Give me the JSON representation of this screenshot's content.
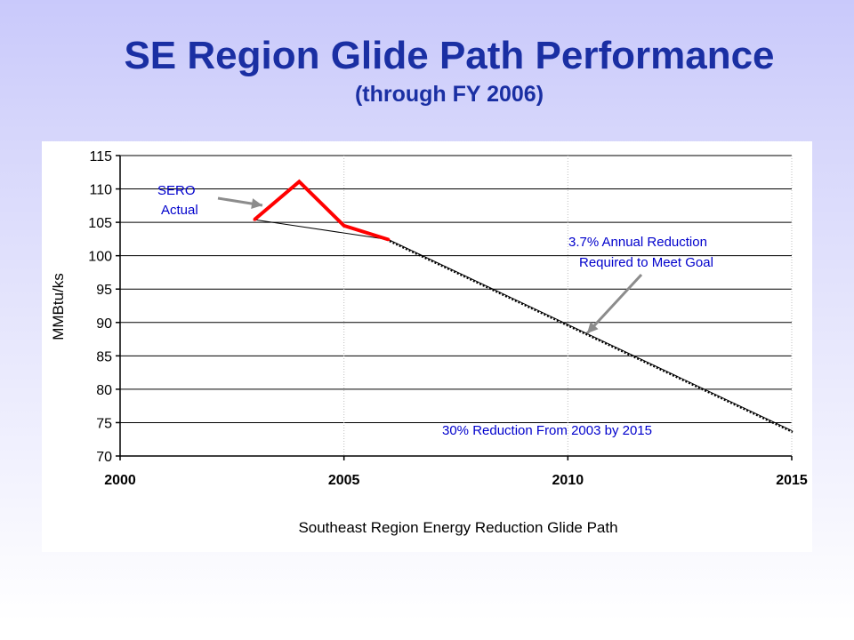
{
  "slide": {
    "title": "SE Region Glide Path Performance",
    "subtitle": "(through FY 2006)"
  },
  "chart_data": {
    "type": "line",
    "xlabel": "Southeast Region Energy Reduction Glide Path",
    "ylabel": "MMBtu/ks",
    "xlim": [
      2000,
      2015
    ],
    "ylim": [
      70,
      115
    ],
    "x_ticks": [
      "2000",
      "2005",
      "2010",
      "2015"
    ],
    "y_ticks": [
      "70",
      "75",
      "80",
      "85",
      "90",
      "95",
      "100",
      "105",
      "110",
      "115"
    ],
    "grid": true,
    "series": [
      {
        "name": "SERO Actual",
        "color": "#ff0000",
        "x": [
          2003,
          2004,
          2005,
          2006
        ],
        "y": [
          105.4,
          111.1,
          104.5,
          102.4
        ]
      },
      {
        "name": "3.7% Annual Reduction Required to Meet Goal",
        "color": "#000000",
        "style": "dotted",
        "x": [
          2003,
          2006,
          2015
        ],
        "y": [
          105.4,
          102.4,
          73.8
        ]
      }
    ],
    "annotations": [
      {
        "text_lines": [
          "SERO",
          "Actual"
        ],
        "color": "#0000cc"
      },
      {
        "text_lines": [
          "3.7% Annual Reduction",
          "Required to Meet Goal"
        ],
        "color": "#0000cc"
      },
      {
        "text_lines": [
          "30% Reduction From 2003 by 2015"
        ],
        "color": "#0000cc"
      }
    ],
    "arrow_color": "#8c8c8c"
  }
}
